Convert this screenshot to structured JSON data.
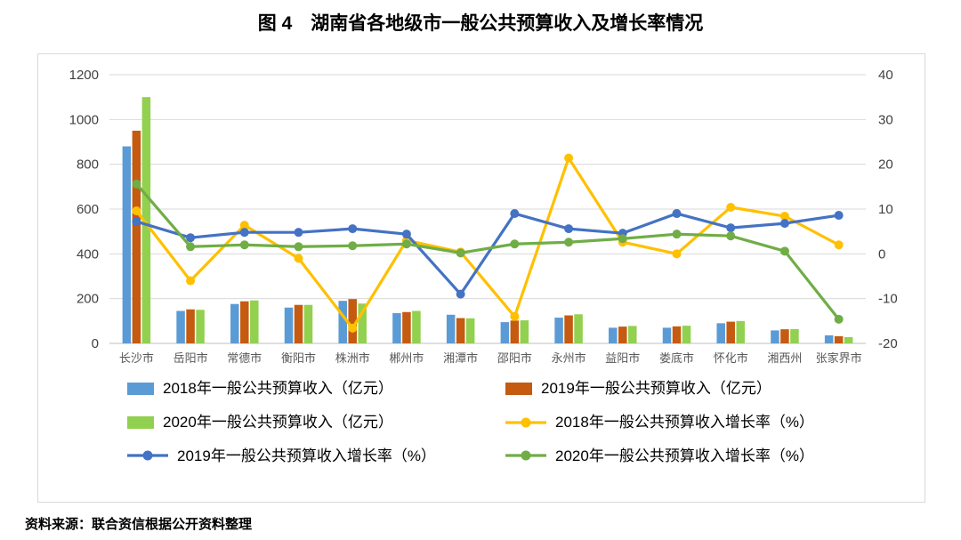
{
  "title": "图 4　湖南省各地级市一般公共预算收入及增长率情况",
  "source_note": "资料来源：联合资信根据公开资料整理",
  "chart_data": {
    "type": "bar",
    "subtype": "grouped-bar-with-lines-combo",
    "grid": true,
    "legend_position": "bottom",
    "categories": [
      "长沙市",
      "岳阳市",
      "常德市",
      "衡阳市",
      "株洲市",
      "郴州市",
      "湘潭市",
      "邵阳市",
      "永州市",
      "益阳市",
      "娄底市",
      "怀化市",
      "湘西州",
      "张家界市"
    ],
    "left_axis": {
      "label": "",
      "min": 0,
      "max": 1200,
      "step": 200,
      "ticks": [
        0,
        200,
        400,
        600,
        800,
        1000,
        1200
      ]
    },
    "right_axis": {
      "label": "",
      "min": -20,
      "max": 40,
      "step": 10,
      "ticks": [
        -20,
        -10,
        0,
        10,
        20,
        30,
        40
      ]
    },
    "bar_series": [
      {
        "name": "2018年一般公共预算收入（亿元）",
        "color": "#5B9BD5",
        "axis": "left",
        "values": [
          880,
          145,
          176,
          160,
          190,
          135,
          128,
          95,
          115,
          70,
          70,
          90,
          58,
          36
        ]
      },
      {
        "name": "2019年一般公共预算收入（亿元）",
        "color": "#C55A11",
        "axis": "left",
        "values": [
          950,
          152,
          188,
          172,
          198,
          140,
          113,
          102,
          125,
          75,
          76,
          97,
          63,
          32
        ]
      },
      {
        "name": "2020年一般公共预算收入（亿元）",
        "color": "#92D050",
        "axis": "left",
        "values": [
          1100,
          150,
          192,
          172,
          178,
          145,
          112,
          103,
          130,
          78,
          79,
          100,
          64,
          28
        ]
      }
    ],
    "line_series": [
      {
        "name": "2018年一般公共预算收入增长率（%）",
        "color": "#FFC000",
        "axis": "right",
        "values": [
          9.6,
          -6.0,
          6.4,
          -1.0,
          -16.6,
          3.0,
          0.4,
          -14.0,
          21.4,
          2.6,
          0.0,
          10.4,
          8.4,
          2.0
        ]
      },
      {
        "name": "2019年一般公共预算收入增长率（%）",
        "color": "#4472C4",
        "axis": "right",
        "values": [
          7.2,
          3.6,
          4.8,
          4.8,
          5.6,
          4.4,
          -9.0,
          9.0,
          5.6,
          4.6,
          9.0,
          5.8,
          6.8,
          8.6
        ]
      },
      {
        "name": "2020年一般公共预算收入增长率（%）",
        "color": "#70AD47",
        "axis": "right",
        "values": [
          15.6,
          1.6,
          2.0,
          1.6,
          1.8,
          2.2,
          0.2,
          2.2,
          2.6,
          3.4,
          4.4,
          4.0,
          0.6,
          -14.6
        ]
      }
    ]
  }
}
